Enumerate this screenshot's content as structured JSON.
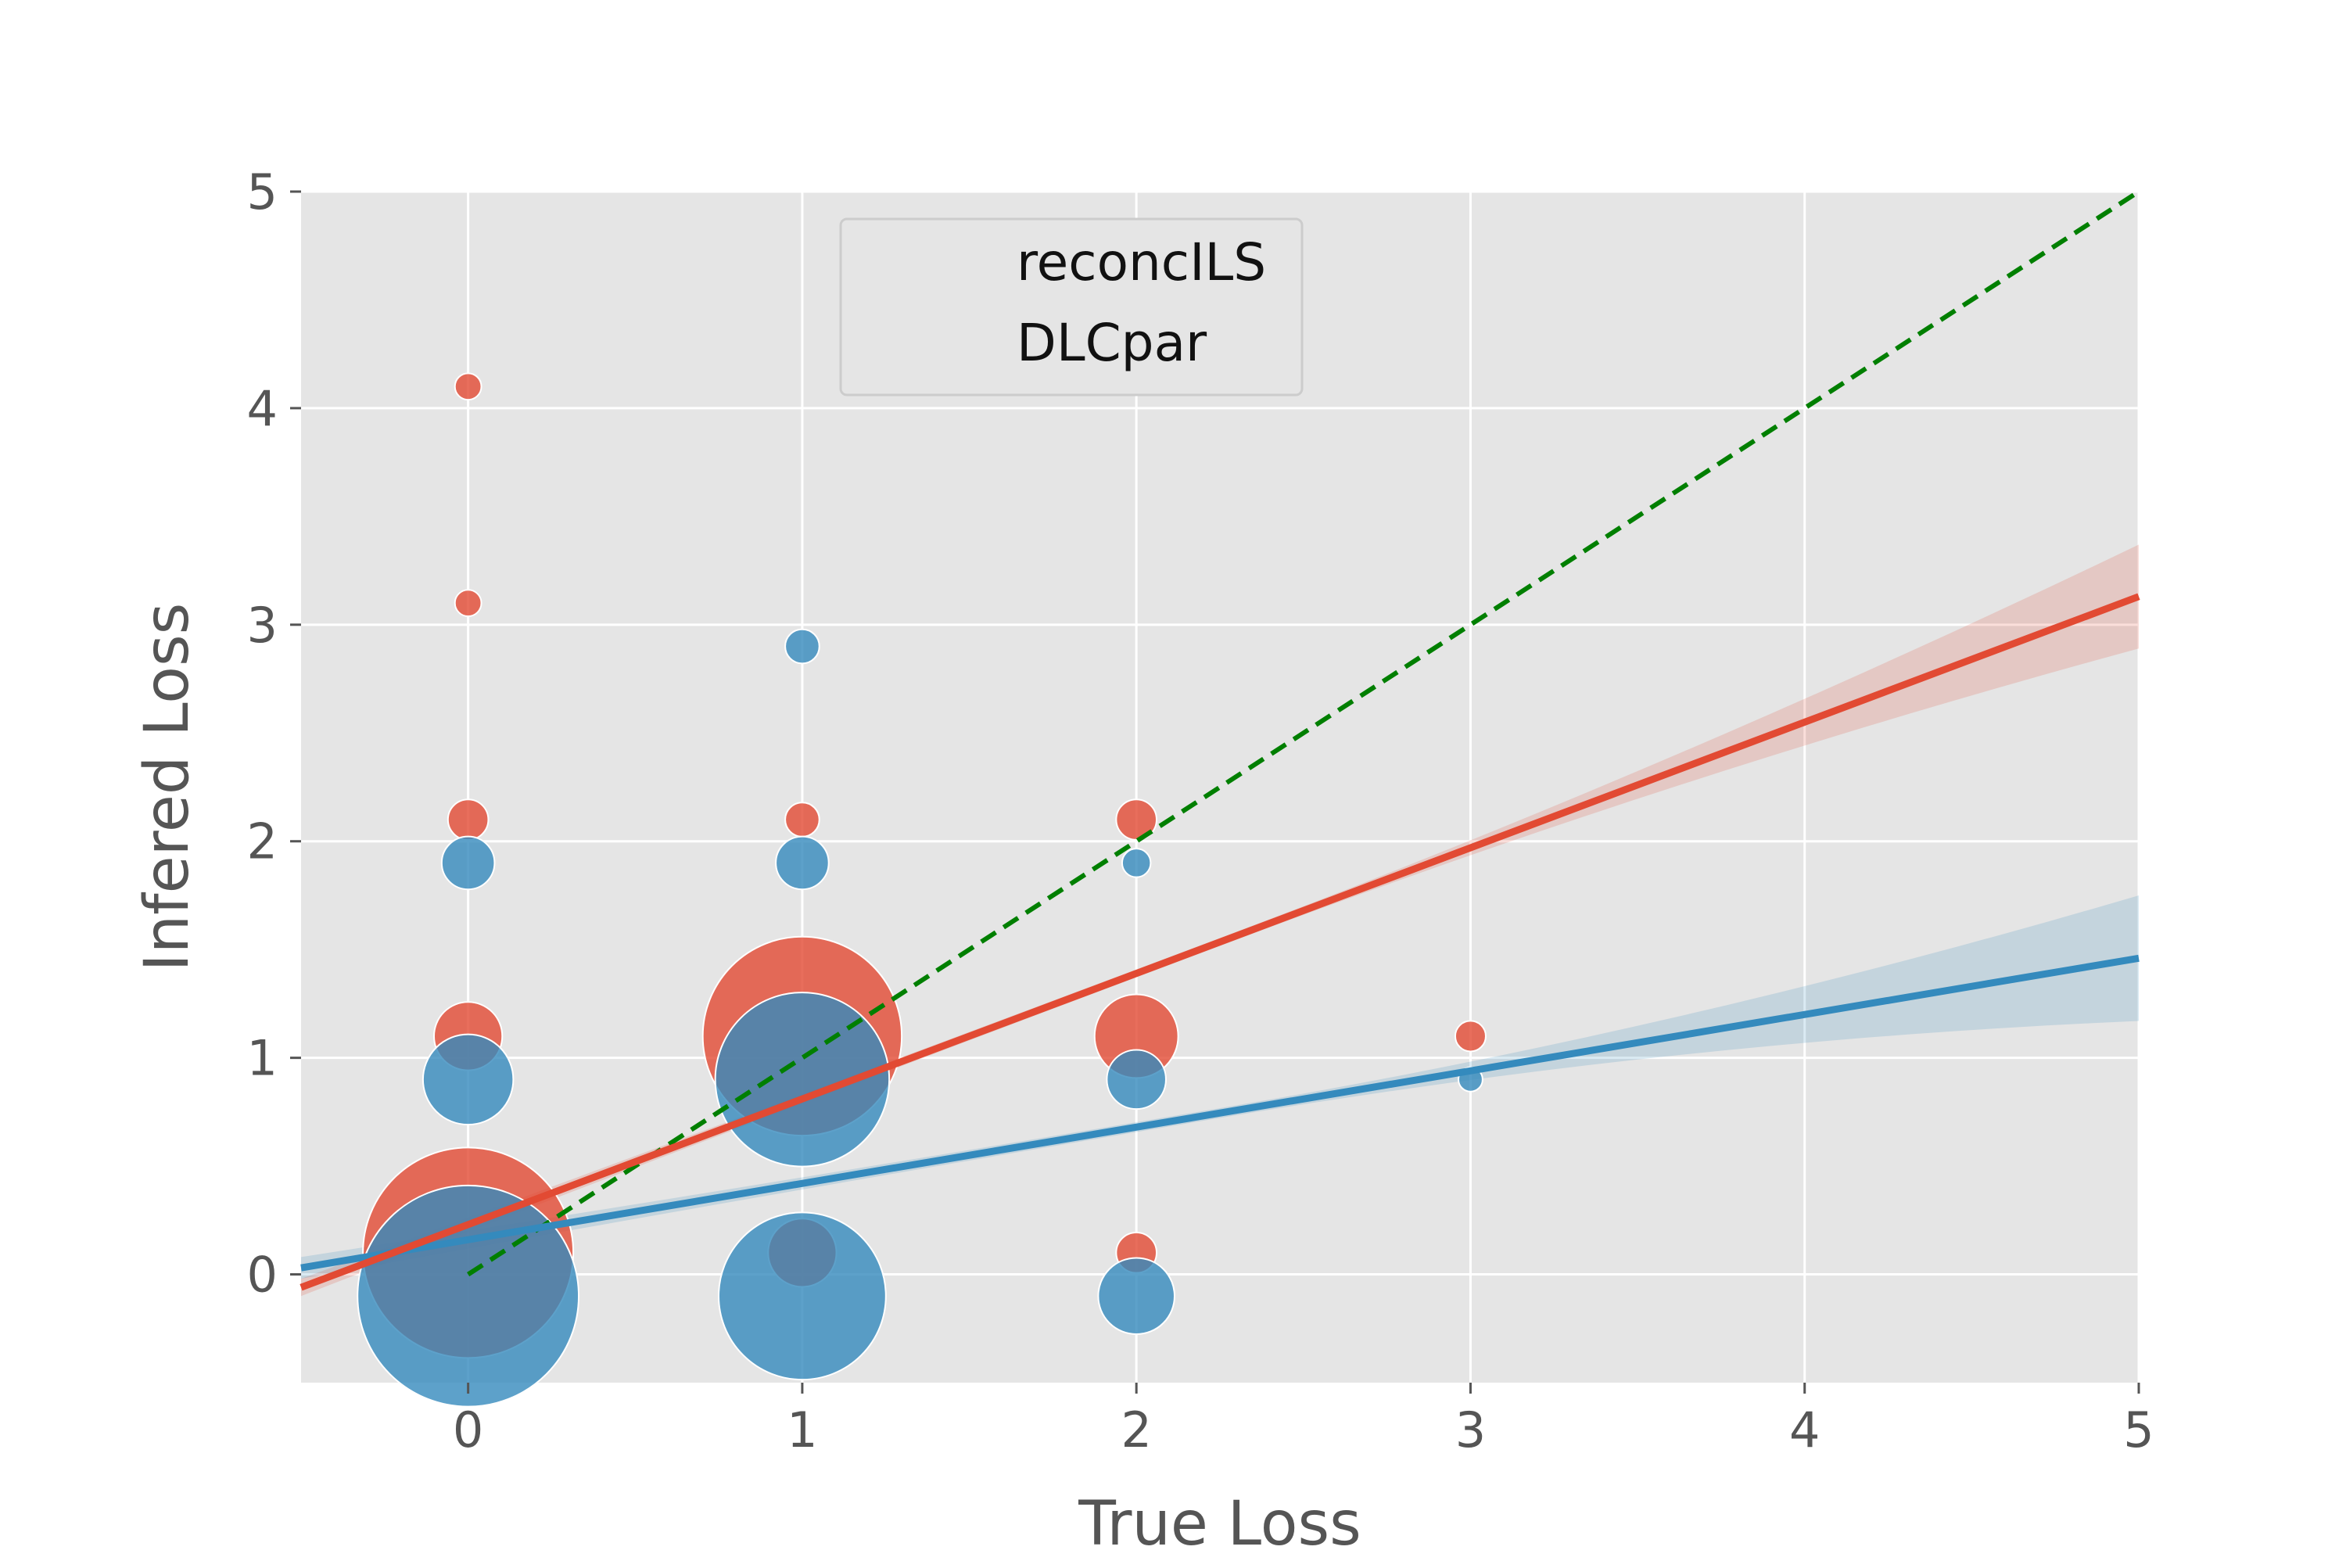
{
  "chart_data": {
    "type": "scatter",
    "title": "",
    "xlabel": "True Loss",
    "ylabel": "Infered Loss",
    "xlim": [
      -0.5,
      5
    ],
    "ylim": [
      -0.5,
      5
    ],
    "xticks": [
      0,
      1,
      2,
      3,
      4,
      5
    ],
    "yticks": [
      0,
      1,
      2,
      3,
      4,
      5
    ],
    "xtick_labels": [
      "0",
      "1",
      "2",
      "3",
      "4",
      "5"
    ],
    "ytick_labels": [
      "0",
      "1",
      "2",
      "3",
      "4",
      "5"
    ],
    "grid": true,
    "legend_position": "top-center",
    "colors": {
      "reconcILS": "#E24A33",
      "DLCpar": "#348ABD",
      "reference": "#007F00",
      "panel": "#E5E5E5",
      "grid": "#FFFFFF",
      "text": "#555555"
    },
    "series": [
      {
        "name": "reconcILS",
        "color": "#E24A33",
        "points": [
          {
            "x": 0,
            "y": 0.1,
            "size": 380
          },
          {
            "x": 0,
            "y": 1.1,
            "size": 40
          },
          {
            "x": 0,
            "y": 2.1,
            "size": 14
          },
          {
            "x": 0,
            "y": 3.1,
            "size": 6
          },
          {
            "x": 0,
            "y": 4.1,
            "size": 6
          },
          {
            "x": 1,
            "y": 0.1,
            "size": 40
          },
          {
            "x": 1,
            "y": 1.1,
            "size": 340
          },
          {
            "x": 1,
            "y": 2.1,
            "size": 10
          },
          {
            "x": 2,
            "y": 0.1,
            "size": 14
          },
          {
            "x": 2,
            "y": 1.1,
            "size": 60
          },
          {
            "x": 2,
            "y": 2.1,
            "size": 14
          },
          {
            "x": 3,
            "y": 1.1,
            "size": 8
          }
        ],
        "regression": {
          "slope": 0.58,
          "intercept": 0.23,
          "ci_halfwidth_at_min": 0.04,
          "ci_halfwidth_at_max": 0.24
        }
      },
      {
        "name": "DLCpar",
        "color": "#348ABD",
        "points": [
          {
            "x": 0,
            "y": -0.1,
            "size": 420
          },
          {
            "x": 0,
            "y": 0.9,
            "size": 70
          },
          {
            "x": 0,
            "y": 1.9,
            "size": 24
          },
          {
            "x": 1,
            "y": -0.1,
            "size": 240
          },
          {
            "x": 1,
            "y": 0.9,
            "size": 260
          },
          {
            "x": 1,
            "y": 1.9,
            "size": 24
          },
          {
            "x": 1,
            "y": 2.9,
            "size": 10
          },
          {
            "x": 2,
            "y": -0.1,
            "size": 50
          },
          {
            "x": 2,
            "y": 0.9,
            "size": 30
          },
          {
            "x": 2,
            "y": 1.9,
            "size": 7
          },
          {
            "x": 3,
            "y": 0.9,
            "size": 5
          }
        ],
        "regression": {
          "slope": 0.26,
          "intercept": 0.16,
          "ci_halfwidth_at_min": 0.05,
          "ci_halfwidth_at_max": 0.29
        }
      }
    ],
    "reference_line": {
      "x": [
        0,
        5
      ],
      "y": [
        0,
        5
      ],
      "style": "dashed"
    },
    "legend": [
      {
        "label": "reconcILS"
      },
      {
        "label": "DLCpar"
      }
    ]
  }
}
